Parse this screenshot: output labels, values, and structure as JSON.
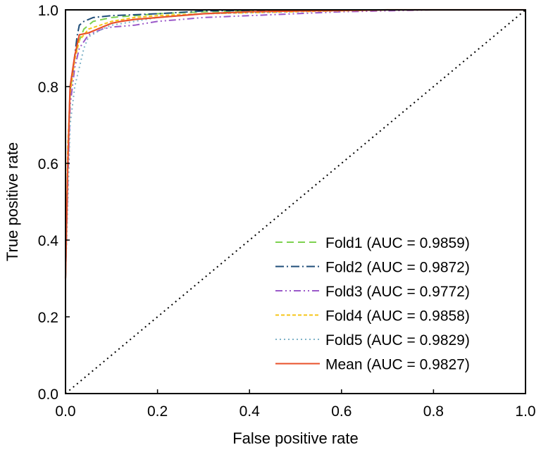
{
  "chart_data": {
    "type": "line",
    "title": "",
    "xlabel": "False positive rate",
    "ylabel": "True positive rate",
    "xlim": [
      0,
      1
    ],
    "ylim": [
      0,
      1
    ],
    "xticks": [
      "0.0",
      "0.2",
      "0.4",
      "0.6",
      "0.8",
      "1.0"
    ],
    "yticks": [
      "0.0",
      "0.2",
      "0.4",
      "0.6",
      "0.8",
      "1.0"
    ],
    "grid": false,
    "legend_position": "bottom-right",
    "series": [
      {
        "name": "Fold1 (AUC = 0.9859)",
        "color": "#7dd14f",
        "dash": "dashed",
        "x": [
          0,
          0.005,
          0.01,
          0.02,
          0.03,
          0.04,
          0.06,
          0.1,
          0.15,
          0.2,
          0.3,
          0.5,
          0.7,
          1.0
        ],
        "y": [
          0.3,
          0.6,
          0.78,
          0.88,
          0.92,
          0.95,
          0.97,
          0.98,
          0.985,
          0.99,
          0.995,
          0.998,
          1.0,
          1.0
        ]
      },
      {
        "name": "Fold2 (AUC = 0.9872)",
        "color": "#1f4e79",
        "dash": "dashdot",
        "x": [
          0,
          0.005,
          0.01,
          0.02,
          0.025,
          0.03,
          0.04,
          0.06,
          0.1,
          0.2,
          0.3,
          0.5,
          0.7,
          1.0
        ],
        "y": [
          0.3,
          0.62,
          0.79,
          0.88,
          0.93,
          0.96,
          0.97,
          0.98,
          0.985,
          0.99,
          0.997,
          1.0,
          1.0,
          1.0
        ]
      },
      {
        "name": "Fold3 (AUC = 0.9772)",
        "color": "#9b59c9",
        "dash": "dashdotdot",
        "x": [
          0,
          0.005,
          0.01,
          0.02,
          0.03,
          0.05,
          0.08,
          0.1,
          0.15,
          0.2,
          0.3,
          0.4,
          0.5,
          0.6,
          0.8,
          1.0
        ],
        "y": [
          0.3,
          0.55,
          0.75,
          0.85,
          0.9,
          0.935,
          0.95,
          0.955,
          0.96,
          0.97,
          0.98,
          0.985,
          0.99,
          0.995,
          1.0,
          1.0
        ]
      },
      {
        "name": "Fold4 (AUC = 0.9858)",
        "color": "#f5c518",
        "dash": "shortdash",
        "x": [
          0,
          0.005,
          0.01,
          0.02,
          0.03,
          0.05,
          0.1,
          0.15,
          0.2,
          0.3,
          0.5,
          0.7,
          1.0
        ],
        "y": [
          0.3,
          0.65,
          0.78,
          0.87,
          0.92,
          0.95,
          0.97,
          0.98,
          0.985,
          0.99,
          0.995,
          1.0,
          1.0
        ]
      },
      {
        "name": "Fold5 (AUC = 0.9829)",
        "color": "#7fb3c8",
        "dash": "dotted",
        "x": [
          0,
          0.005,
          0.01,
          0.02,
          0.03,
          0.04,
          0.05,
          0.08,
          0.1,
          0.2,
          0.3,
          0.5,
          0.7,
          1.0
        ],
        "y": [
          0.3,
          0.5,
          0.7,
          0.8,
          0.85,
          0.9,
          0.93,
          0.95,
          0.96,
          0.98,
          0.99,
          0.995,
          1.0,
          1.0
        ]
      },
      {
        "name": "Mean (AUC = 0.9827)",
        "color": "#e8502a",
        "dash": "solid",
        "x": [
          0,
          0.005,
          0.01,
          0.02,
          0.03,
          0.05,
          0.08,
          0.1,
          0.12,
          0.15,
          0.2,
          0.3,
          0.4,
          0.5,
          0.7,
          1.0
        ],
        "y": [
          0.3,
          0.6,
          0.8,
          0.88,
          0.935,
          0.94,
          0.955,
          0.965,
          0.97,
          0.975,
          0.98,
          0.99,
          0.995,
          0.997,
          1.0,
          1.0
        ]
      },
      {
        "name": "Chance",
        "color": "#000000",
        "dash": "dotted",
        "in_legend": false,
        "x": [
          0,
          1
        ],
        "y": [
          0,
          1
        ]
      }
    ]
  }
}
